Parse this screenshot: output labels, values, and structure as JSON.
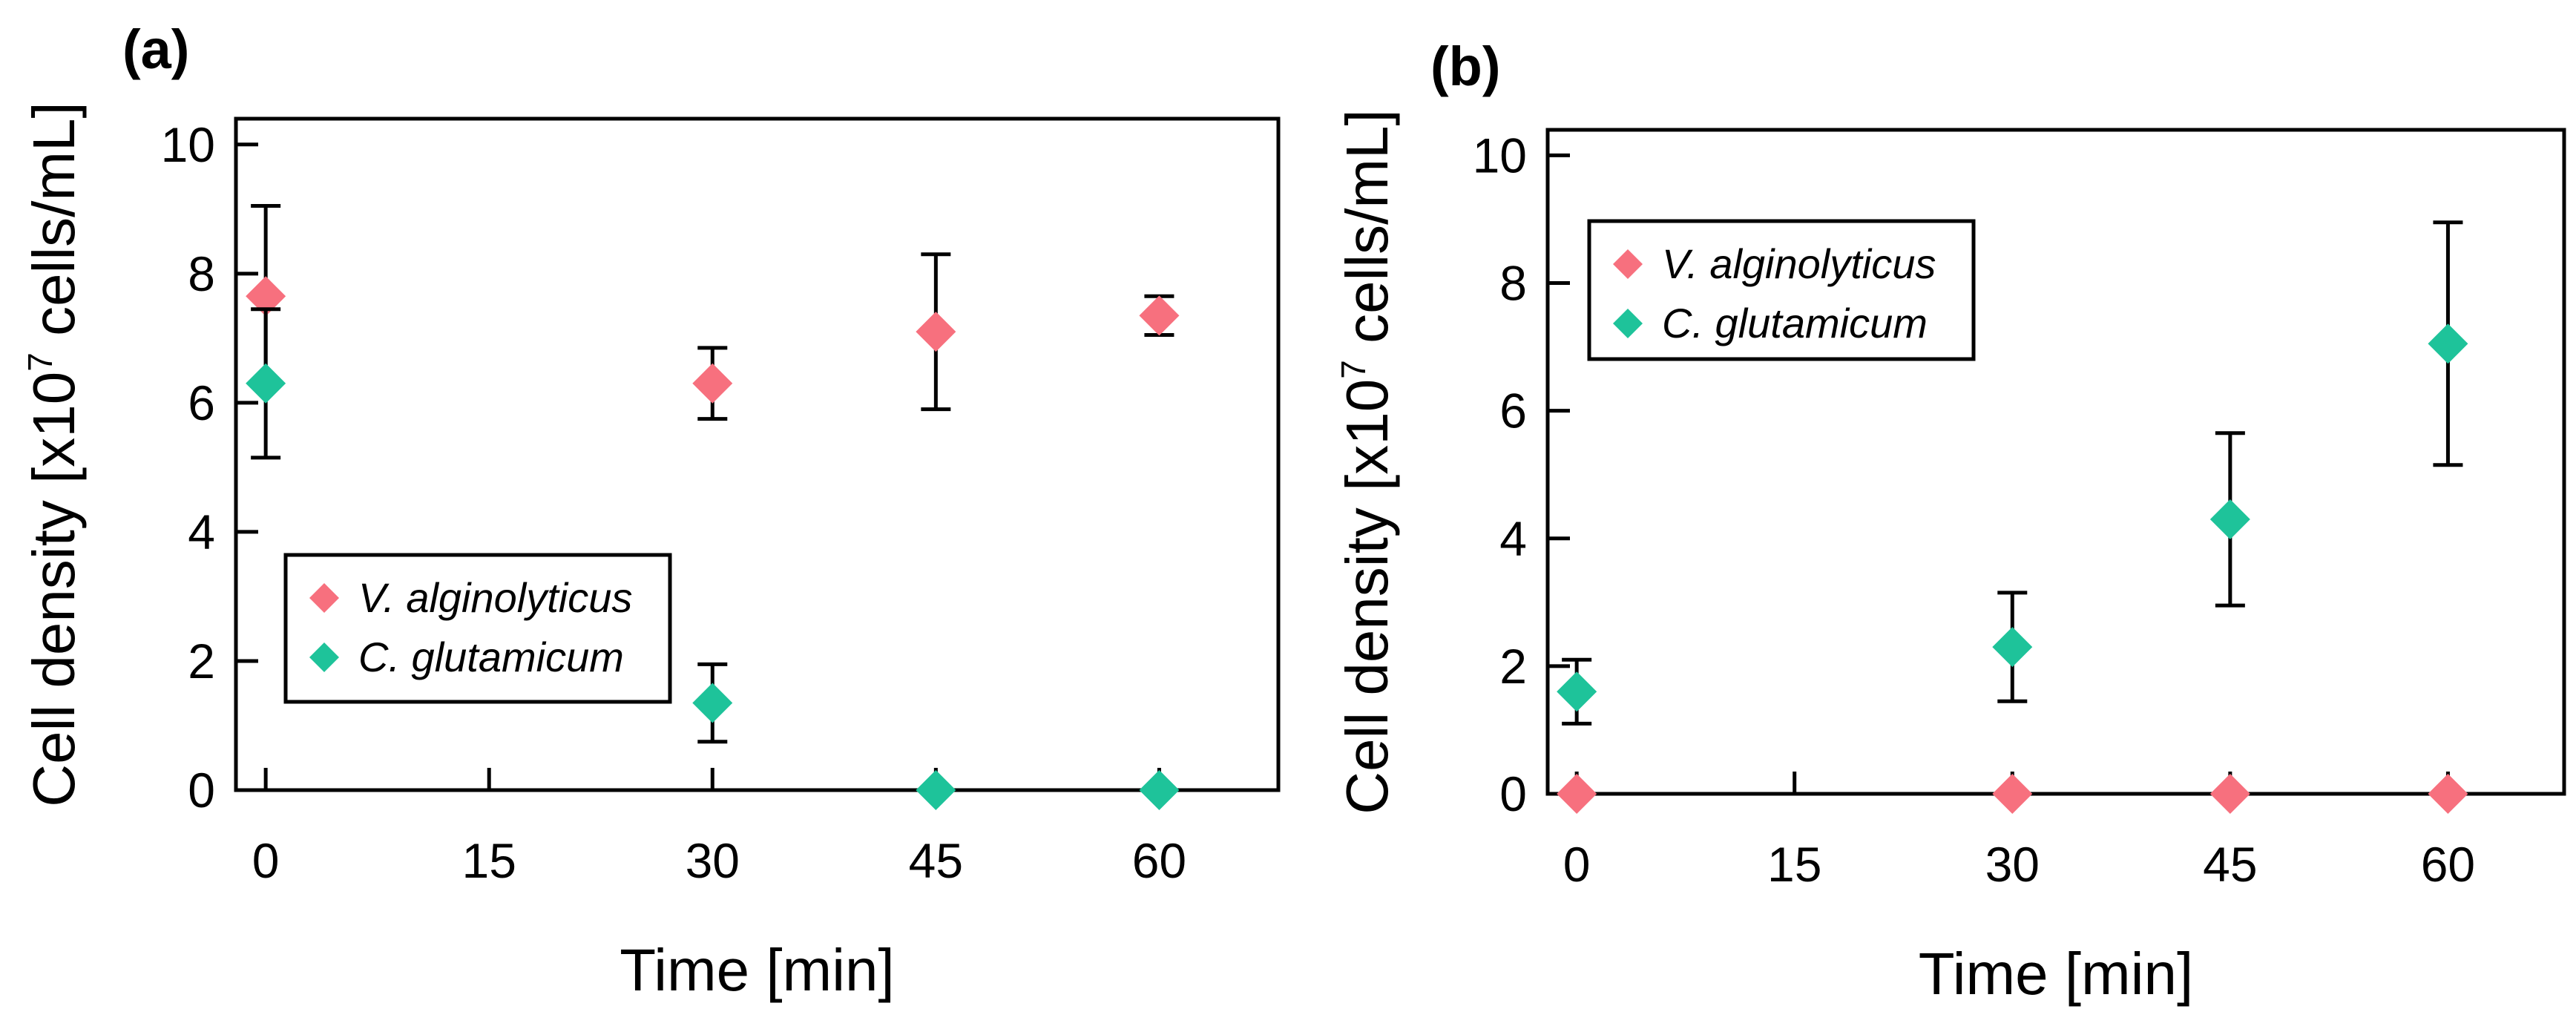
{
  "chart_data": [
    {
      "type": "scatter",
      "panel_label": "(a)",
      "xlabel": "Time [min]",
      "ylabel_prefix": "Cell density  [x10",
      "ylabel_exponent": "7",
      "ylabel_suffix": " cells/mL]",
      "xlim": [
        -2,
        68
      ],
      "ylim": [
        0,
        10.4
      ],
      "xticks": [
        0,
        15,
        30,
        45,
        60
      ],
      "xtick_labels": [
        "0",
        "15",
        "30",
        "45",
        "60"
      ],
      "yticks": [
        0,
        2,
        4,
        6,
        8,
        10
      ],
      "ytick_labels": [
        "0",
        "2",
        "4",
        "6",
        "8",
        "10"
      ],
      "legend": {
        "placement": "lower-left",
        "entries": [
          "V. alginolyticus",
          "C. glutamicum"
        ]
      },
      "series": [
        {
          "name": "V. alginolyticus",
          "color": "#f7707e",
          "x": [
            0,
            30,
            45,
            60
          ],
          "y": [
            7.65,
            6.3,
            7.1,
            7.35
          ],
          "err": [
            1.4,
            0.55,
            1.2,
            0.3
          ]
        },
        {
          "name": "C. glutamicum",
          "color": "#1ec39a",
          "x": [
            0,
            30,
            45,
            60
          ],
          "y": [
            6.3,
            1.35,
            0.0,
            0.0
          ],
          "err": [
            1.15,
            0.6,
            0.0,
            0.0
          ]
        }
      ]
    },
    {
      "type": "scatter",
      "panel_label": "(b)",
      "xlabel": "Time [min]",
      "ylabel_prefix": "Cell density  [x10",
      "ylabel_exponent": "7",
      "ylabel_suffix": " cells/mL]",
      "xlim": [
        -2,
        68
      ],
      "ylim": [
        0,
        10.4
      ],
      "xticks": [
        0,
        15,
        30,
        45,
        60
      ],
      "xtick_labels": [
        "0",
        "15",
        "30",
        "45",
        "60"
      ],
      "yticks": [
        0,
        2,
        4,
        6,
        8,
        10
      ],
      "ytick_labels": [
        "0",
        "2",
        "4",
        "6",
        "8",
        "10"
      ],
      "legend": {
        "placement": "top-left",
        "entries": [
          "V. alginolyticus",
          "C. glutamicum"
        ]
      },
      "series": [
        {
          "name": "V. alginolyticus",
          "color": "#f7707e",
          "x": [
            0,
            30,
            45,
            60
          ],
          "y": [
            0.0,
            0.0,
            0.0,
            0.0
          ],
          "err": [
            0,
            0,
            0,
            0
          ]
        },
        {
          "name": "C. glutamicum",
          "color": "#1ec39a",
          "x": [
            0,
            30,
            45,
            60
          ],
          "y": [
            1.6,
            2.3,
            4.3,
            7.05
          ],
          "err": [
            0.5,
            0.85,
            1.35,
            1.9
          ]
        }
      ]
    }
  ]
}
